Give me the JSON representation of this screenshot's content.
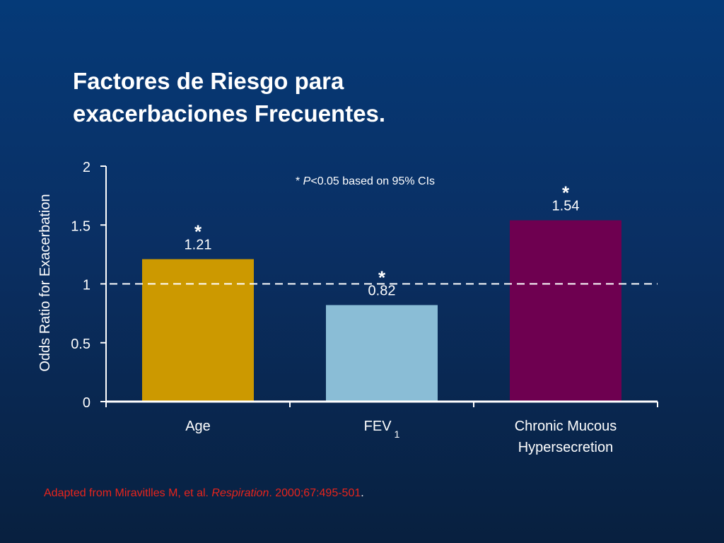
{
  "title_lines": [
    "Factores de Riesgo para",
    "exacerbaciones Frecuentes."
  ],
  "source": {
    "prefix": "Adapted from Miravitlles M, et al. ",
    "journal": "Respiration",
    "suffix": ". 2000;67:495-501",
    "period": "."
  },
  "chart_data": {
    "type": "bar",
    "ylabel": "Odds Ratio for Exacerbation",
    "xlabel": "",
    "ylim": [
      0,
      2
    ],
    "yticks": [
      "0",
      "0.5",
      "1",
      "1.5",
      "2"
    ],
    "reference_line": 1,
    "grid": false,
    "footnote": {
      "marker": "* ",
      "italic": "P",
      "rest": "<0.05 based on 95% CIs"
    },
    "bars": [
      {
        "label_lines": [
          "Age"
        ],
        "label_subscript": "",
        "value": 1.21,
        "value_label": "1.21",
        "significance": "*",
        "color": "#cc9900"
      },
      {
        "label_lines": [
          "FEV"
        ],
        "label_subscript": "1",
        "value": 0.82,
        "value_label": "0.82",
        "significance": "*",
        "color": "#8abdd6"
      },
      {
        "label_lines": [
          "Chronic Mucous",
          "Hypersecretion"
        ],
        "label_subscript": "",
        "value": 1.54,
        "value_label": "1.54",
        "significance": "*",
        "color": "#6e0050"
      }
    ]
  }
}
